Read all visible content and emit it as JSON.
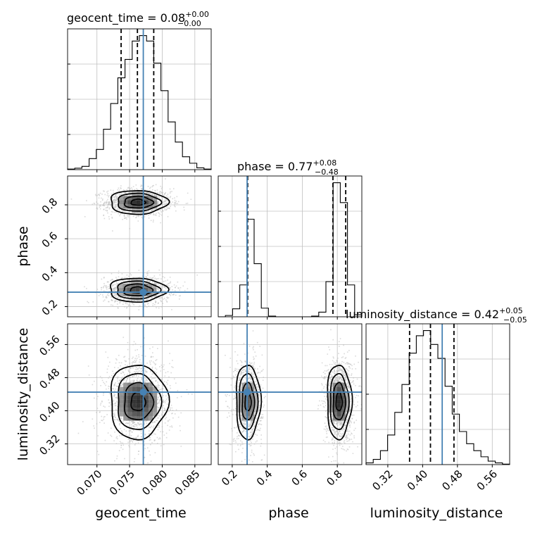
{
  "chart_data": {
    "type": "corner",
    "parameters": [
      "geocent_time",
      "phase",
      "luminosity_distance"
    ],
    "truths": [
      0.0771,
      0.285,
      0.445
    ],
    "truth_color": "#4682b4",
    "grid": true,
    "histograms": [
      {
        "parameter": "geocent_time",
        "title": "geocent_time = 0.08",
        "title_sup": "+0.00",
        "title_sub": "−0.00",
        "quantiles": [
          0.0737,
          0.0762,
          0.0787
        ],
        "xlim": [
          0.0655,
          0.0875
        ],
        "bin_edges": [
          0.0655,
          0.0666,
          0.0677,
          0.0688,
          0.0699,
          0.071,
          0.0721,
          0.0732,
          0.0743,
          0.0754,
          0.0765,
          0.0776,
          0.0787,
          0.0798,
          0.0809,
          0.082,
          0.0831,
          0.0842,
          0.0853,
          0.0864,
          0.0875
        ],
        "counts": [
          0.3,
          0.8,
          1.8,
          6,
          11,
          22,
          36,
          50,
          60,
          70,
          73,
          70,
          58,
          43,
          26,
          15,
          7,
          3.5,
          1,
          0.3
        ]
      },
      {
        "parameter": "phase",
        "title": "phase = 0.77",
        "title_sup": "+0.08",
        "title_sub": "−0.48",
        "quantiles": [
          0.288,
          0.775,
          0.848
        ],
        "xlim": [
          0.12,
          0.94
        ],
        "bin_edges": [
          0.12,
          0.161,
          0.202,
          0.243,
          0.284,
          0.325,
          0.366,
          0.407,
          0.448,
          0.489,
          0.53,
          0.571,
          0.612,
          0.653,
          0.694,
          0.735,
          0.776,
          0.817,
          0.858,
          0.899,
          0.94
        ],
        "counts": [
          0,
          2,
          12,
          48,
          147,
          80,
          13,
          1,
          0,
          0,
          0,
          0,
          0,
          1,
          7,
          53,
          202,
          172,
          48,
          3
        ]
      },
      {
        "parameter": "luminosity_distance",
        "title": "luminosity_distance = 0.42",
        "title_sup": "+0.05",
        "title_sub": "−0.05",
        "quantiles": [
          0.37,
          0.418,
          0.472
        ],
        "xlim": [
          0.27,
          0.6
        ],
        "bin_edges": [
          0.27,
          0.2865,
          0.303,
          0.3195,
          0.336,
          0.3525,
          0.369,
          0.3855,
          0.402,
          0.4185,
          0.435,
          0.4515,
          0.468,
          0.4845,
          0.501,
          0.5175,
          0.534,
          0.5505,
          0.567,
          0.5835,
          0.6
        ],
        "counts": [
          1,
          3,
          8,
          17,
          30,
          46,
          64,
          74,
          77,
          69,
          61,
          45,
          29,
          19,
          12,
          8,
          4.5,
          2,
          1,
          0.3
        ]
      }
    ],
    "panels_2d": [
      {
        "x": "geocent_time",
        "y": "phase",
        "xlim": [
          0.0655,
          0.0875
        ],
        "ylim": [
          0.14,
          0.97
        ],
        "yticks": [
          "0.2",
          "0.4",
          "0.6",
          "0.8"
        ],
        "modes": [
          {
            "cx": 0.0763,
            "cy": 0.815,
            "sx": 0.0022,
            "sy": 0.035,
            "weight": 1.0
          },
          {
            "cx": 0.0762,
            "cy": 0.298,
            "sx": 0.0022,
            "sy": 0.035,
            "weight": 0.85
          }
        ]
      },
      {
        "x": "geocent_time",
        "y": "luminosity_distance",
        "xlim": [
          0.0655,
          0.0875
        ],
        "ylim": [
          0.27,
          0.61
        ],
        "yticks": [
          "0.32",
          "0.40",
          "0.48",
          "0.56"
        ],
        "modes": [
          {
            "cx": 0.0763,
            "cy": 0.422,
            "sx": 0.0022,
            "sy": 0.045,
            "weight": 1.0
          }
        ]
      },
      {
        "x": "phase",
        "y": "luminosity_distance",
        "xlim": [
          0.12,
          0.94
        ],
        "ylim": [
          0.27,
          0.61
        ],
        "modes": [
          {
            "cx": 0.29,
            "cy": 0.422,
            "sx": 0.035,
            "sy": 0.045,
            "weight": 0.75
          },
          {
            "cx": 0.81,
            "cy": 0.422,
            "sx": 0.035,
            "sy": 0.045,
            "weight": 1.0
          }
        ]
      }
    ],
    "xticks": {
      "geocent_time": [
        "0.070",
        "0.075",
        "0.080",
        "0.085"
      ],
      "phase": [
        "0.2",
        "0.4",
        "0.6",
        "0.8"
      ],
      "luminosity_distance": [
        "0.32",
        "0.40",
        "0.48",
        "0.56"
      ]
    },
    "xlabels": [
      "geocent_time",
      "phase",
      "luminosity_distance"
    ],
    "ylabels": [
      "phase",
      "luminosity_distance"
    ]
  }
}
